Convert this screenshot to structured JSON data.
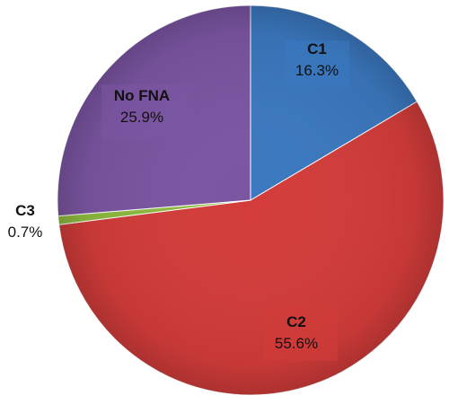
{
  "chart_data": {
    "type": "pie",
    "title": "",
    "slices": [
      {
        "name": "C1",
        "label": "16.3%",
        "value": 16.3,
        "color": "#3B78BF"
      },
      {
        "name": "C2",
        "label": "55.6%",
        "value": 55.6,
        "color": "#D23C3A"
      },
      {
        "name": "C3",
        "label": "0.7%",
        "value": 0.7,
        "color": "#8DBA3E"
      },
      {
        "name": "No FNA",
        "label": "25.9%",
        "value": 25.9,
        "color": "#7B55A2"
      }
    ],
    "start_angle_deg": 0,
    "direction": "clockwise",
    "legend": "none",
    "data_labels": "inside, C3 outside-left"
  }
}
